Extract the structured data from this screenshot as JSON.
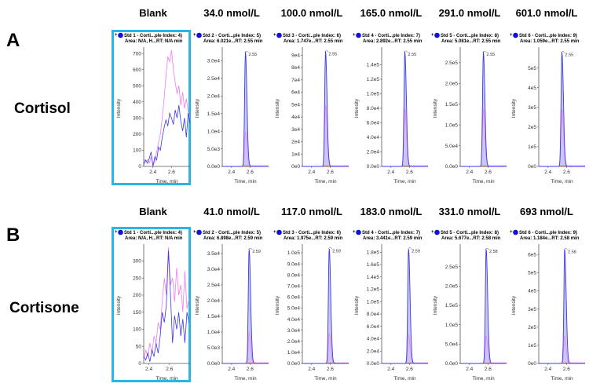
{
  "figure": {
    "rows": [
      {
        "letter": "A",
        "analyte": "Cortisol",
        "headers": [
          "Blank",
          "34.0 nmol/L",
          "100.0 nmol/L",
          "165.0 nmol/L",
          "291.0 nmol/L",
          "601.0 nmol/L"
        ]
      },
      {
        "letter": "B",
        "analyte": "Cortisone",
        "headers": [
          "Blank",
          "41.0 nmol/L",
          "117.0 nmol/L",
          "183.0 nmol/L",
          "331.0 nmol/L",
          "693 nmol/L"
        ]
      }
    ],
    "colors": {
      "highlight_frame": "#29b6e6",
      "quantifier_trace": "#3a3ae0",
      "qualifier_trace": "#f07cf0",
      "peak_fill": "#c8c8f4",
      "legend_dot": "#1010e0",
      "baseline": "#d03030"
    }
  },
  "chart_data": [
    {
      "type": "line",
      "row": 0,
      "col": 0,
      "title_line1": "Std 1 - Corti...ple Index: 4)",
      "title_line2": "Area: N/A, H...RT: N/A min",
      "xlabel": "Time, min",
      "ylabel": "Intensity",
      "xlim": [
        2.3,
        2.8
      ],
      "ylim": [
        0,
        720
      ],
      "xticks": [
        "2.4",
        "2.6"
      ],
      "yticks": [
        "0",
        "100",
        "200",
        "300",
        "400",
        "500",
        "600",
        "700"
      ],
      "ytick_values": [
        0,
        100,
        200,
        300,
        400,
        500,
        600,
        700
      ],
      "rt_label": "",
      "blank": true,
      "series": [
        {
          "name": "qualifier",
          "x": [
            2.3,
            2.32,
            2.34,
            2.36,
            2.38,
            2.4,
            2.42,
            2.44,
            2.46,
            2.48,
            2.5,
            2.52,
            2.54,
            2.56,
            2.58,
            2.6,
            2.62,
            2.64,
            2.66,
            2.68,
            2.7,
            2.72,
            2.74,
            2.76,
            2.78,
            2.8
          ],
          "y": [
            50,
            30,
            40,
            20,
            60,
            10,
            30,
            90,
            150,
            200,
            300,
            420,
            560,
            680,
            650,
            720,
            600,
            520,
            450,
            500,
            380,
            460,
            360,
            420,
            340,
            300
          ]
        },
        {
          "name": "quantifier",
          "x": [
            2.3,
            2.32,
            2.34,
            2.36,
            2.38,
            2.4,
            2.42,
            2.44,
            2.46,
            2.48,
            2.5,
            2.52,
            2.54,
            2.56,
            2.58,
            2.6,
            2.62,
            2.64,
            2.66,
            2.68,
            2.7,
            2.72,
            2.74,
            2.76,
            2.78,
            2.8
          ],
          "y": [
            10,
            40,
            20,
            50,
            90,
            0,
            60,
            40,
            120,
            100,
            180,
            240,
            290,
            250,
            330,
            300,
            260,
            350,
            300,
            380,
            280,
            220,
            300,
            180,
            330,
            270
          ]
        }
      ]
    },
    {
      "type": "line",
      "row": 0,
      "col": 1,
      "title_line1": "Std 2 - Corti...ple Index: 5)",
      "title_line2": "Area: 6.021e...RT: 2.55 min",
      "xlabel": "Time, min",
      "ylabel": "Intensity",
      "xlim": [
        2.3,
        2.8
      ],
      "ylim": [
        0,
        33000
      ],
      "xticks": [
        "2.4",
        "2.6"
      ],
      "yticks": [
        "0.0e0",
        "5.0e3",
        "1.0e4",
        "1.5e4",
        "2.0e4",
        "2.5e4",
        "3.0e4"
      ],
      "ytick_values": [
        0,
        5000,
        10000,
        15000,
        20000,
        25000,
        30000
      ],
      "rt_label": "2.55",
      "peak_rt": 2.55,
      "peak_height": 32500,
      "qual_ratio": 0.3
    },
    {
      "type": "line",
      "row": 0,
      "col": 2,
      "title_line1": "Std 3 - Corti...ple Index: 6)",
      "title_line2": "Area: 1.747e...RT: 2.55 min",
      "xlabel": "Time, min",
      "ylabel": "Intensity",
      "xlim": [
        2.3,
        2.8
      ],
      "ylim": [
        0,
        94000
      ],
      "xticks": [
        "2.4",
        "2.6"
      ],
      "yticks": [
        "0e0",
        "1e4",
        "2e4",
        "3e4",
        "4e4",
        "5e4",
        "6e4",
        "7e4",
        "8e4",
        "9e4"
      ],
      "ytick_values": [
        0,
        10000,
        20000,
        30000,
        40000,
        50000,
        60000,
        70000,
        80000,
        90000
      ],
      "rt_label": "2.55",
      "peak_rt": 2.55,
      "peak_height": 93000,
      "qual_ratio": 0.53
    },
    {
      "type": "line",
      "row": 0,
      "col": 3,
      "title_line1": "Std 4 - Corti...ple Index: 7)",
      "title_line2": "Area: 2.892e...RT: 2.55 min",
      "xlabel": "Time, min",
      "ylabel": "Intensity",
      "xlim": [
        2.3,
        2.8
      ],
      "ylim": [
        0,
        160000
      ],
      "xticks": [
        "2.4",
        "2.6"
      ],
      "yticks": [
        "0.0e0",
        "2.0e4",
        "4.0e4",
        "6.0e4",
        "8.0e4",
        "1.0e5",
        "1.2e5",
        "1.4e5"
      ],
      "ytick_values": [
        0,
        20000,
        40000,
        60000,
        80000,
        100000,
        120000,
        140000
      ],
      "rt_label": "2.55",
      "peak_rt": 2.55,
      "peak_height": 158000,
      "qual_ratio": 0.5
    },
    {
      "type": "line",
      "row": 0,
      "col": 4,
      "title_line1": "Std 5 - Corti...ple Index: 8)",
      "title_line2": "Area: 5.081e...RT: 2.55 min",
      "xlabel": "Time, min",
      "ylabel": "Intensity",
      "xlim": [
        2.3,
        2.8
      ],
      "ylim": [
        0,
        280000
      ],
      "xticks": [
        "2.4",
        "2.6"
      ],
      "yticks": [
        "0.0e0",
        "5.0e4",
        "1.0e5",
        "1.5e5",
        "2.0e5",
        "2.5e5"
      ],
      "ytick_values": [
        0,
        50000,
        100000,
        150000,
        200000,
        250000
      ],
      "rt_label": "2.55",
      "peak_rt": 2.55,
      "peak_height": 276000,
      "qual_ratio": 0.5
    },
    {
      "type": "line",
      "row": 0,
      "col": 5,
      "title_line1": "Std 6 - Corti...ple Index: 9)",
      "title_line2": "Area: 1.059e...RT: 2.55 min",
      "xlabel": "Time, min",
      "ylabel": "Intensity",
      "xlim": [
        2.3,
        2.8
      ],
      "ylim": [
        0,
        590000
      ],
      "xticks": [
        "2.4",
        "2.6"
      ],
      "yticks": [
        "0e0",
        "1e5",
        "2e5",
        "3e5",
        "4e5",
        "5e5"
      ],
      "ytick_values": [
        0,
        100000,
        200000,
        300000,
        400000,
        500000
      ],
      "rt_label": "2.55",
      "peak_rt": 2.55,
      "peak_height": 580000,
      "qual_ratio": 0.5
    },
    {
      "type": "line",
      "row": 1,
      "col": 0,
      "title_line1": "Std 1 - Corti...ple Index: 4)",
      "title_line2": "Area: N/A, H...RT: N/A min",
      "xlabel": "Time, min",
      "ylabel": "Intensity",
      "xlim": [
        2.35,
        2.8
      ],
      "ylim": [
        0,
        340
      ],
      "xticks": [
        "2.4",
        "2.6"
      ],
      "yticks": [
        "0",
        "50",
        "100",
        "150",
        "200",
        "250",
        "300"
      ],
      "ytick_values": [
        0,
        50,
        100,
        150,
        200,
        250,
        300
      ],
      "rt_label": "",
      "blank": true,
      "series": [
        {
          "name": "qualifier",
          "x": [
            2.35,
            2.37,
            2.39,
            2.41,
            2.43,
            2.45,
            2.47,
            2.49,
            2.51,
            2.53,
            2.55,
            2.57,
            2.59,
            2.61,
            2.63,
            2.65,
            2.67,
            2.69,
            2.71,
            2.73,
            2.75,
            2.77,
            2.79
          ],
          "y": [
            10,
            40,
            20,
            60,
            30,
            80,
            60,
            120,
            100,
            180,
            250,
            200,
            340,
            230,
            250,
            180,
            280,
            200,
            230,
            150,
            270,
            160,
            190
          ]
        },
        {
          "name": "quantifier",
          "x": [
            2.35,
            2.37,
            2.39,
            2.41,
            2.43,
            2.45,
            2.47,
            2.49,
            2.51,
            2.53,
            2.55,
            2.57,
            2.59,
            2.61,
            2.63,
            2.65,
            2.67,
            2.69,
            2.71,
            2.73,
            2.75,
            2.77,
            2.79
          ],
          "y": [
            20,
            10,
            30,
            5,
            40,
            20,
            60,
            30,
            80,
            150,
            120,
            170,
            330,
            200,
            60,
            140,
            100,
            150,
            80,
            130,
            60,
            150,
            120
          ]
        }
      ]
    },
    {
      "type": "line",
      "row": 1,
      "col": 1,
      "title_line1": "Std 2 - Corti...ple Index: 5)",
      "title_line2": "Area: 6.898e...RT: 2.59 min",
      "xlabel": "Time, min",
      "ylabel": "Intensity",
      "xlim": [
        2.3,
        2.8
      ],
      "ylim": [
        0,
        37000
      ],
      "xticks": [
        "2.4",
        "2.6"
      ],
      "yticks": [
        "0.0e0",
        "5.0e3",
        "1.0e4",
        "1.5e4",
        "2.0e4",
        "2.5e4",
        "3.0e4",
        "3.5e4"
      ],
      "ytick_values": [
        0,
        5000,
        10000,
        15000,
        20000,
        25000,
        30000,
        35000
      ],
      "rt_label": "2.59",
      "peak_rt": 2.59,
      "peak_height": 36500,
      "qual_ratio": 0.27
    },
    {
      "type": "line",
      "row": 1,
      "col": 2,
      "title_line1": "Std 3 - Corti...ple Index: 6)",
      "title_line2": "Area: 1.975e...RT: 2.59 min",
      "xlabel": "Time, min",
      "ylabel": "Intensity",
      "xlim": [
        2.3,
        2.8
      ],
      "ylim": [
        0,
        105000
      ],
      "xticks": [
        "2.4",
        "2.6"
      ],
      "yticks": [
        "0.0e0",
        "1.0e4",
        "2.0e4",
        "3.0e4",
        "4.0e4",
        "5.0e4",
        "6.0e4",
        "7.0e4",
        "8.0e4",
        "9.0e4",
        "1.0e5"
      ],
      "ytick_values": [
        0,
        10000,
        20000,
        30000,
        40000,
        50000,
        60000,
        70000,
        80000,
        90000,
        100000
      ],
      "rt_label": "2.59",
      "peak_rt": 2.59,
      "peak_height": 104000,
      "qual_ratio": 0.26
    },
    {
      "type": "line",
      "row": 1,
      "col": 3,
      "title_line1": "Std 4 - Corti...ple Index: 7)",
      "title_line2": "Area: 3.441e...RT: 2.59 min",
      "xlabel": "Time, min",
      "ylabel": "Intensity",
      "xlim": [
        2.3,
        2.8
      ],
      "ylim": [
        0,
        188000
      ],
      "xticks": [
        "2.4",
        "2.6"
      ],
      "yticks": [
        "0.0e0",
        "2.0e4",
        "4.0e4",
        "6.0e4",
        "8.0e4",
        "1.0e5",
        "1.2e5",
        "1.4e5",
        "1.6e5",
        "1.8e5"
      ],
      "ytick_values": [
        0,
        20000,
        40000,
        60000,
        80000,
        100000,
        120000,
        140000,
        160000,
        180000
      ],
      "rt_label": "2.59",
      "peak_rt": 2.59,
      "peak_height": 186000,
      "qual_ratio": 0.25
    },
    {
      "type": "line",
      "row": 1,
      "col": 4,
      "title_line1": "Std 5 - Corti...ple Index: 8)",
      "title_line2": "Area: 5.677e...RT: 2.58 min",
      "xlabel": "Time, min",
      "ylabel": "Intensity",
      "xlim": [
        2.3,
        2.8
      ],
      "ylim": [
        0,
        300000
      ],
      "xticks": [
        "2.4",
        "2.6"
      ],
      "yticks": [
        "0.0e0",
        "5.0e4",
        "1.0e5",
        "1.5e5",
        "2.0e5",
        "2.5e5"
      ],
      "ytick_values": [
        0,
        50000,
        100000,
        150000,
        200000,
        250000
      ],
      "rt_label": "2.58",
      "peak_rt": 2.58,
      "peak_height": 296000,
      "qual_ratio": 0.24
    },
    {
      "type": "line",
      "row": 1,
      "col": 5,
      "title_line1": "Std 6 - Corti...ple Index: 9)",
      "title_line2": "Area: 1.184e...RT: 2.58 min",
      "xlabel": "Time, min",
      "ylabel": "Intensity",
      "xlim": [
        2.3,
        2.8
      ],
      "ylim": [
        0,
        640000
      ],
      "xticks": [
        "2.4",
        "2.6"
      ],
      "yticks": [
        "0e0",
        "1e5",
        "2e5",
        "3e5",
        "4e5",
        "5e5",
        "6e5"
      ],
      "ytick_values": [
        0,
        100000,
        200000,
        300000,
        400000,
        500000,
        600000
      ],
      "rt_label": "2.58",
      "peak_rt": 2.58,
      "peak_height": 630000,
      "qual_ratio": 0.24
    }
  ]
}
